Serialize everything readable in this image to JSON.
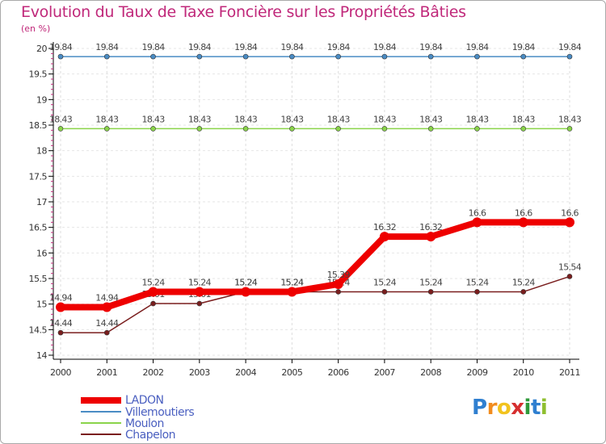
{
  "title": "Evolution du Taux de Taxe Foncière sur les Propriétés Bâties",
  "subtitle": "(en %)",
  "chart_data": {
    "type": "line",
    "title": "Evolution du Taux de Taxe Foncière sur les Propriétés Bâties",
    "ylabel": "(en %)",
    "xlabel": "",
    "ylim": [
      14,
      20
    ],
    "yticks": [
      "14",
      "14.5",
      "15",
      "15.5",
      "16",
      "16.5",
      "17",
      "17.5",
      "18",
      "18.5",
      "19",
      "19.5",
      "20"
    ],
    "categories": [
      "2000",
      "2001",
      "2002",
      "2003",
      "2004",
      "2005",
      "2006",
      "2007",
      "2008",
      "2009",
      "2010",
      "2011"
    ],
    "series": [
      {
        "name": "Villemoutiers",
        "color": "#4a8cc4",
        "values": [
          19.84,
          19.84,
          19.84,
          19.84,
          19.84,
          19.84,
          19.84,
          19.84,
          19.84,
          19.84,
          19.84,
          19.84
        ],
        "labels": [
          "19.84",
          "19.84",
          "19.84",
          "19.84",
          "19.84",
          "19.84",
          "19.84",
          "19.84",
          "19.84",
          "19.84",
          "19.84",
          "19.84"
        ]
      },
      {
        "name": "Moulon",
        "color": "#8ad44a",
        "values": [
          18.43,
          18.43,
          18.43,
          18.43,
          18.43,
          18.43,
          18.43,
          18.43,
          18.43,
          18.43,
          18.43,
          18.43
        ],
        "labels": [
          "18.43",
          "18.43",
          "18.43",
          "18.43",
          "18.43",
          "18.43",
          "18.43",
          "18.43",
          "18.43",
          "18.43",
          "18.43",
          "18.43"
        ]
      },
      {
        "name": "Chapelon",
        "color": "#7a1e1e",
        "values": [
          14.44,
          14.44,
          15.01,
          15.01,
          15.24,
          15.24,
          15.24,
          15.24,
          15.24,
          15.24,
          15.24,
          15.54
        ],
        "labels": [
          "14.44",
          "14.44",
          "15.01",
          "15.01",
          "15.24",
          "15.24",
          "15.24",
          "15.24",
          "15.24",
          "15.24",
          "15.24",
          "15.54"
        ]
      },
      {
        "name": "LADON",
        "color": "#ee0000",
        "values": [
          14.94,
          14.94,
          15.24,
          15.24,
          15.24,
          15.24,
          15.39,
          16.32,
          16.32,
          16.6,
          16.6,
          16.6
        ],
        "labels": [
          "14.94",
          "14.94",
          "15.24",
          "15.24",
          "15.24",
          "15.24",
          "15.39",
          "16.32",
          "16.32",
          "16.6",
          "16.6",
          "16.6"
        ]
      }
    ],
    "legend": [
      "LADON",
      "Villemoutiers",
      "Moulon",
      "Chapelon"
    ],
    "legend_position": "bottom-left"
  },
  "logo": {
    "text": [
      "P",
      "r",
      "o",
      "x",
      "i",
      "t",
      "i"
    ],
    "colors": [
      "#2f7fd0",
      "#f28c1e",
      "#f2c31e",
      "#d62f2f",
      "#2f9a3a",
      "#2f7fd0",
      "#8fbf2f"
    ]
  }
}
